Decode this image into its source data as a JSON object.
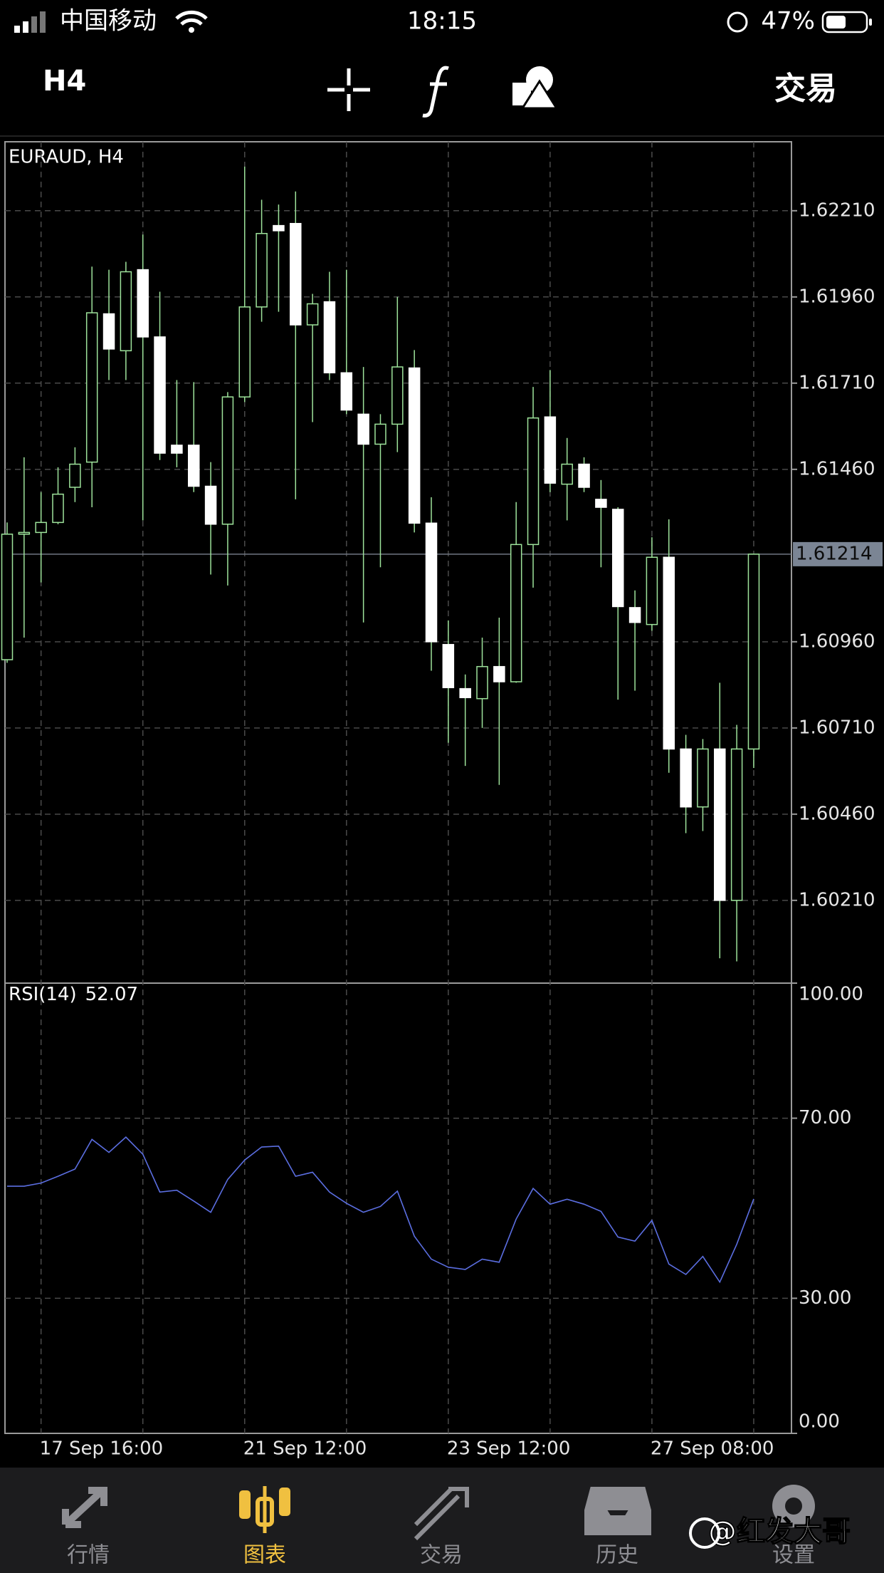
{
  "status_bar": {
    "carrier": "中国移动",
    "time": "18:15",
    "battery": "47%"
  },
  "toolbar": {
    "timeframe": "H4",
    "trade": "交易"
  },
  "chart_data": {
    "type": "candlestick",
    "title": "EURAUD, H4",
    "categories": [
      null,
      null,
      "17 Sep 16:00",
      null,
      null,
      null,
      null,
      null,
      null,
      null,
      null,
      null,
      null,
      null,
      "21 Sep 12:00",
      null,
      null,
      null,
      null,
      null,
      null,
      null,
      null,
      null,
      null,
      null,
      "23 Sep 12:00",
      null,
      null,
      null,
      null,
      null,
      null,
      null,
      null,
      null,
      null,
      null,
      "27 Sep 08:00",
      null,
      null,
      null,
      null,
      null,
      null
    ],
    "open": [
      1.60908,
      1.61272,
      1.61277,
      1.61306,
      1.61408,
      1.61481,
      1.61911,
      1.61804,
      1.62039,
      1.61844,
      1.6153,
      1.6153,
      1.61411,
      1.61301,
      1.6167,
      1.61931,
      1.62167,
      1.62173,
      1.61879,
      1.61946,
      1.6174,
      1.6162,
      1.61533,
      1.61591,
      1.61754,
      1.61304,
      1.60952,
      1.60824,
      1.60795,
      1.60888,
      1.60844,
      1.61242,
      1.61612,
      1.61417,
      1.61475,
      1.61373,
      1.61344,
      1.61059,
      1.6101,
      1.61205,
      1.60649,
      1.60481,
      1.60649,
      1.6021,
      1.60649
    ],
    "high": [
      1.61306,
      1.61495,
      1.61394,
      1.61466,
      1.61524,
      1.62048,
      1.62039,
      1.62062,
      1.62141,
      1.61975,
      1.61719,
      1.61713,
      1.61481,
      1.61684,
      1.62338,
      1.62242,
      1.62228,
      1.62266,
      1.61969,
      1.62033,
      1.62039,
      1.61757,
      1.6162,
      1.6196,
      1.61806,
      1.61379,
      1.61022,
      1.60865,
      1.60972,
      1.6103,
      1.61365,
      1.61699,
      1.61748,
      1.61551,
      1.61495,
      1.61429,
      1.6135,
      1.61109,
      1.61263,
      1.61315,
      1.6069,
      1.60678,
      1.60841,
      1.60719,
      1.61214
    ],
    "low": [
      1.60899,
      1.60972,
      1.61132,
      1.61301,
      1.61365,
      1.6135,
      1.61719,
      1.61719,
      1.61312,
      1.61487,
      1.61466,
      1.61394,
      1.61155,
      1.61123,
      1.61655,
      1.61888,
      1.61917,
      1.61373,
      1.61597,
      1.61719,
      1.6162,
      1.61016,
      1.61176,
      1.6151,
      1.61277,
      1.60876,
      1.60667,
      1.606,
      1.6071,
      1.60545,
      1.60841,
      1.61117,
      1.61394,
      1.61312,
      1.61394,
      1.61176,
      1.60792,
      1.60818,
      1.60992,
      1.6058,
      1.60405,
      1.60411,
      1.60042,
      1.60033,
      1.60594
    ],
    "close": [
      1.61272,
      1.61277,
      1.61306,
      1.61388,
      1.61475,
      1.61914,
      1.61809,
      1.62033,
      1.61844,
      1.61507,
      1.61507,
      1.61411,
      1.61301,
      1.6167,
      1.61931,
      1.62144,
      1.62152,
      1.61879,
      1.6194,
      1.6174,
      1.61632,
      1.61533,
      1.61591,
      1.61757,
      1.61304,
      1.6096,
      1.60827,
      1.60798,
      1.60888,
      1.60844,
      1.61242,
      1.61609,
      1.6142,
      1.61475,
      1.61408,
      1.6135,
      1.61062,
      1.61016,
      1.61205,
      1.60649,
      1.60481,
      1.60649,
      1.6021,
      1.60649,
      1.61214
    ],
    "up_color": "#9ee39b",
    "down_color": "#ffffff",
    "wick_color": "#9ee39b",
    "ylim": [
      1.5997,
      1.6241
    ],
    "yticks": [
      {
        "value": 1.6021,
        "label": "1.60210"
      },
      {
        "value": 1.6046,
        "label": "1.60460"
      },
      {
        "value": 1.6071,
        "label": "1.60710"
      },
      {
        "value": 1.6096,
        "label": "1.60960"
      },
      {
        "value": 1.6146,
        "label": "1.61460"
      },
      {
        "value": 1.6171,
        "label": "1.61710"
      },
      {
        "value": 1.6196,
        "label": "1.61960"
      },
      {
        "value": 1.6221,
        "label": "1.62210"
      }
    ],
    "grid": true,
    "indicator": {
      "type": "line",
      "name": "RSI(14)",
      "color": "#5b6ee1",
      "values": [
        54.9,
        54.9,
        55.6,
        57.1,
        58.7,
        65.3,
        62.4,
        65.8,
        62.0,
        53.6,
        54.0,
        51.6,
        49.1,
        56.4,
        60.7,
        63.6,
        63.8,
        57.1,
        58.0,
        53.6,
        51.1,
        49.1,
        50.4,
        53.8,
        43.8,
        38.7,
        36.9,
        36.4,
        38.7,
        38.0,
        47.6,
        54.4,
        50.9,
        52.0,
        50.9,
        49.3,
        43.6,
        42.7,
        47.3,
        37.6,
        35.3,
        39.3,
        33.6,
        42.0,
        52.07
      ],
      "ylim": [
        0,
        100
      ],
      "yticks": [
        {
          "value": 0,
          "label": "0.00"
        },
        {
          "value": 30,
          "label": "30.00"
        },
        {
          "value": 70,
          "label": "70.00"
        },
        {
          "value": 100,
          "label": "100.00"
        }
      ]
    }
  },
  "tab_bar": {
    "tabs": [
      "行情",
      "图表",
      "交易",
      "历史",
      "设置"
    ],
    "active": 1
  },
  "watermark": "@红发大哥"
}
